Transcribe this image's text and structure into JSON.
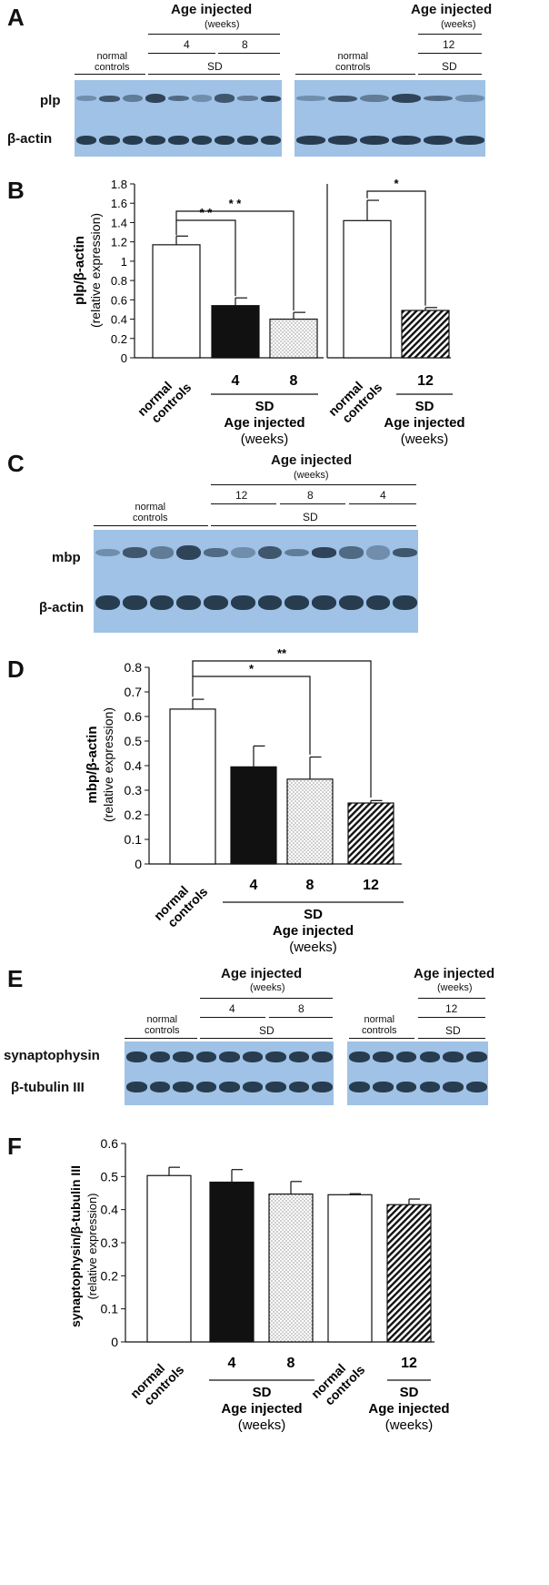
{
  "panels": {
    "A": {
      "letter": "A",
      "left_header": {
        "title": "Age injected",
        "unit": "(weeks)",
        "w1": "4",
        "w2": "8",
        "controls": "normal\ncontrols",
        "sd": "SD"
      },
      "right_header": {
        "title": "Age injected",
        "unit": "(weeks)",
        "w1": "12",
        "controls": "normal\ncontrols",
        "sd": "SD"
      },
      "rows": [
        "plp",
        "β-actin"
      ]
    },
    "C": {
      "letter": "C",
      "header": {
        "title": "Age injected",
        "unit": "(weeks)",
        "w1": "12",
        "w2": "8",
        "w3": "4",
        "controls": "normal\ncontrols",
        "sd": "SD"
      },
      "rows": [
        "mbp",
        "β-actin"
      ]
    },
    "E": {
      "letter": "E",
      "left_header": {
        "title": "Age injected",
        "unit": "(weeks)",
        "w1": "4",
        "w2": "8",
        "controls": "normal\ncontrols",
        "sd": "SD"
      },
      "right_header": {
        "title": "Age injected",
        "unit": "(weeks)",
        "w1": "12",
        "controls": "normal\ncontrols",
        "sd": "SD"
      },
      "rows": [
        "synaptophysin",
        "β-tubulin III"
      ]
    }
  },
  "chart_data": [
    {
      "panel": "B",
      "type": "bar",
      "ylabel": "plp/β-actin",
      "ylabel2": "(relative expression)",
      "ylim": [
        0,
        1.8
      ],
      "yticks": [
        "0",
        "0.2",
        "0.4",
        "0.6",
        "0.8",
        "1",
        "1.2",
        "1.4",
        "1.6",
        "1.8"
      ],
      "groups": [
        {
          "categories": [
            "normal\ncontrols",
            "4",
            "8"
          ],
          "values": [
            1.17,
            0.54,
            0.4
          ],
          "errors": [
            0.09,
            0.08,
            0.07
          ],
          "fills": [
            "white",
            "black",
            "dots"
          ],
          "group_label": "SD",
          "group_label2": "Age injected",
          "group_label3": "(weeks)"
        },
        {
          "categories": [
            "normal\ncontrols",
            "12"
          ],
          "values": [
            1.42,
            0.49
          ],
          "errors": [
            0.21,
            0.03
          ],
          "fills": [
            "white",
            "hatch"
          ],
          "group_label": "SD",
          "group_label2": "Age injected",
          "group_label3": "(weeks)"
        }
      ],
      "significance": [
        "* *",
        "* *",
        "*"
      ]
    },
    {
      "panel": "D",
      "type": "bar",
      "ylabel": "mbp/β-actin",
      "ylabel2": "(relative expression)",
      "ylim": [
        0,
        0.8
      ],
      "yticks": [
        "0",
        "0.1",
        "0.2",
        "0.3",
        "0.4",
        "0.5",
        "0.6",
        "0.7",
        "0.8"
      ],
      "categories": [
        "normal\ncontrols",
        "4",
        "8",
        "12"
      ],
      "values": [
        0.63,
        0.395,
        0.345,
        0.248
      ],
      "errors": [
        0.04,
        0.085,
        0.09,
        0.01
      ],
      "fills": [
        "white",
        "black",
        "dots",
        "hatch"
      ],
      "group_label": "SD",
      "group_label2": "Age injected",
      "group_label3": "(weeks)",
      "significance": [
        "*",
        "**"
      ]
    },
    {
      "panel": "F",
      "type": "bar",
      "ylabel": "synaptophysin/β-tubulin III",
      "ylabel2": "(relative expression)",
      "ylim": [
        0,
        0.6
      ],
      "yticks": [
        "0",
        "0.1",
        "0.2",
        "0.3",
        "0.4",
        "0.5",
        "0.6"
      ],
      "categories": [
        "normal\ncontrols",
        "4",
        "8",
        "normal\ncontrols",
        "12"
      ],
      "values": [
        0.503,
        0.483,
        0.447,
        0.445,
        0.415
      ],
      "errors": [
        0.025,
        0.038,
        0.038,
        0.003,
        0.017
      ],
      "fills": [
        "white",
        "black",
        "dots",
        "white",
        "hatch"
      ],
      "group_label": "SD",
      "group_label2": "Age injected",
      "group_label3": "(weeks)"
    }
  ]
}
